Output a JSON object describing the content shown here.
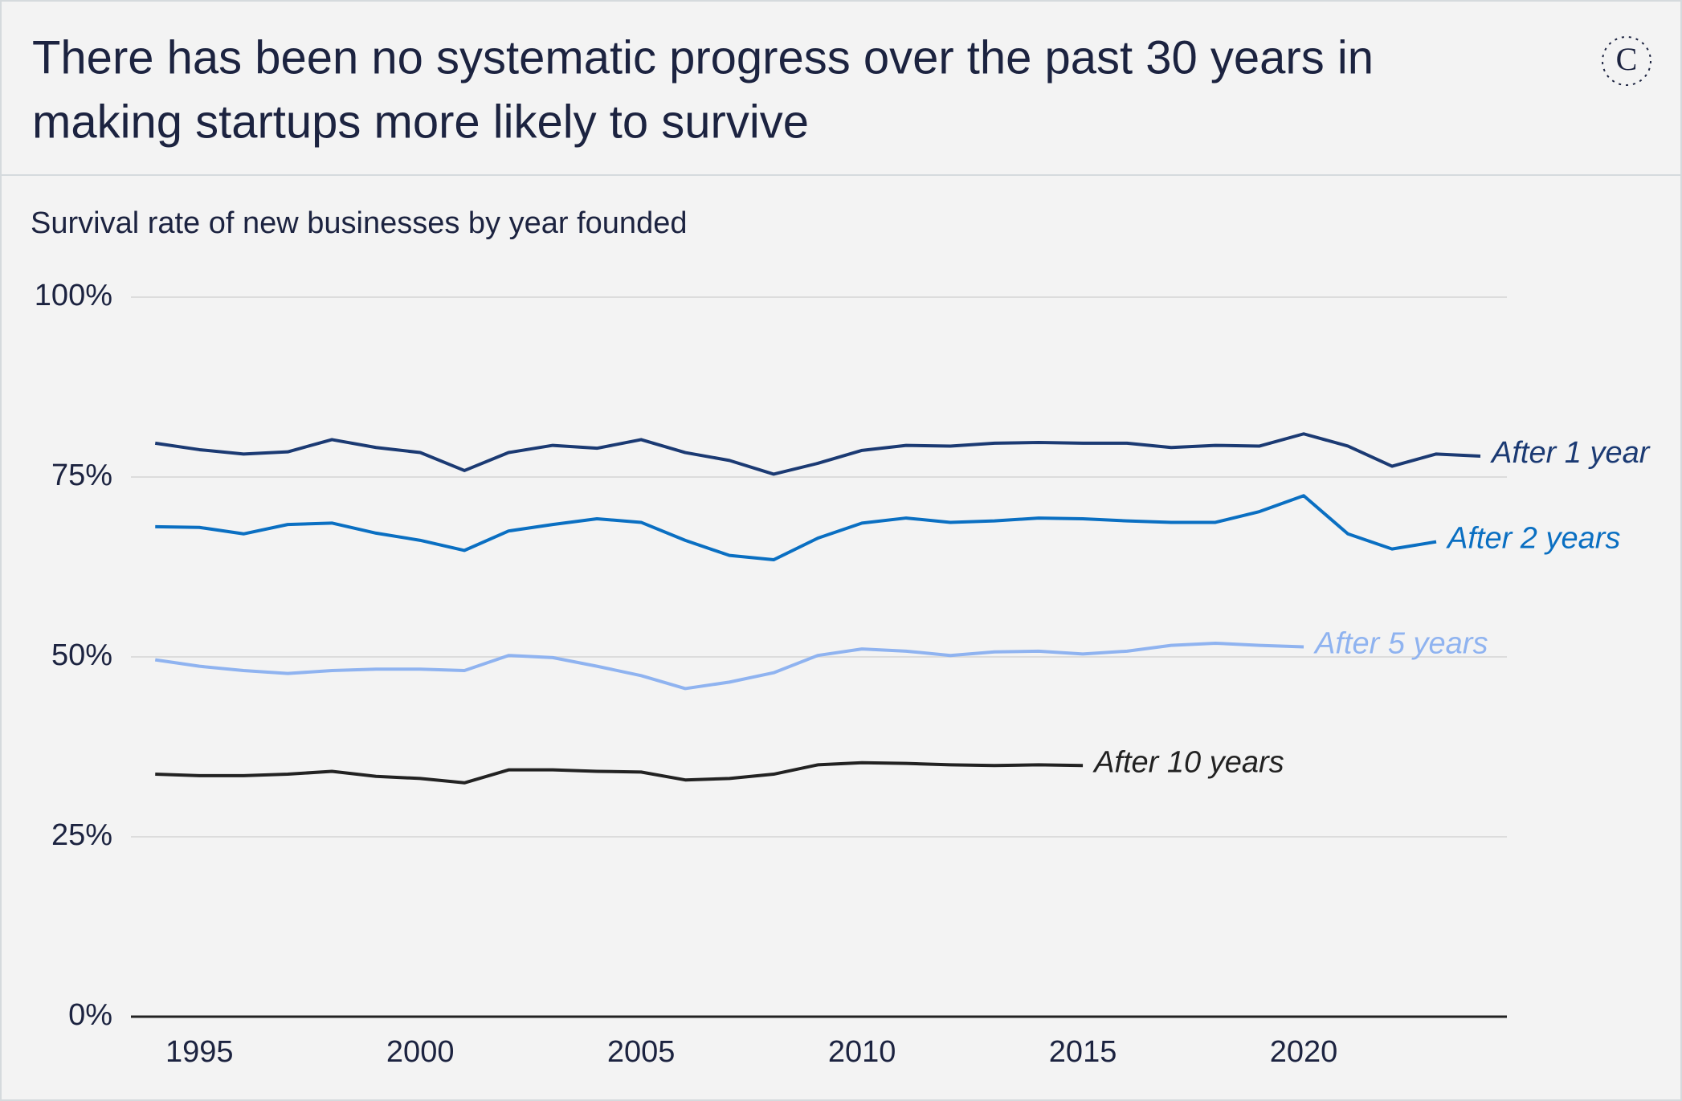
{
  "logo": "C",
  "chart_data": {
    "type": "line",
    "title_lines": [
      "There has been no systematic progress over the past 30 years in",
      "making startups more likely to survive"
    ],
    "subtitle": "Survival rate of new businesses by year founded",
    "x": [
      1994,
      1995,
      1996,
      1997,
      1998,
      1999,
      2000,
      2001,
      2002,
      2003,
      2004,
      2005,
      2006,
      2007,
      2008,
      2009,
      2010,
      2011,
      2012,
      2013,
      2014,
      2015,
      2016,
      2017,
      2018,
      2019,
      2020,
      2021,
      2022,
      2023,
      2024
    ],
    "xlim": [
      1993.45,
      2024.6
    ],
    "xticks": [
      1995,
      2000,
      2005,
      2010,
      2015,
      2020
    ],
    "ylim": [
      0,
      100
    ],
    "yticks": [
      {
        "value": 0,
        "label": "0%"
      },
      {
        "value": 25,
        "label": "25%"
      },
      {
        "value": 50,
        "label": "50%"
      },
      {
        "value": 75,
        "label": "75%"
      },
      {
        "value": 100,
        "label": "100%"
      }
    ],
    "grid": true,
    "series": [
      {
        "name": "After 1 year",
        "color": "#1b3a73",
        "values": [
          79.7,
          78.8,
          78.2,
          78.5,
          80.2,
          79.1,
          78.4,
          75.9,
          78.4,
          79.4,
          79.0,
          80.2,
          78.4,
          77.3,
          75.4,
          76.9,
          78.7,
          79.4,
          79.3,
          79.7,
          79.8,
          79.7,
          79.7,
          79.1,
          79.4,
          79.3,
          81.0,
          79.3,
          76.5,
          78.2,
          77.9
        ]
      },
      {
        "name": "After 2 years",
        "color": "#0a6fc2",
        "values": [
          68.1,
          68.0,
          67.1,
          68.4,
          68.6,
          67.2,
          66.2,
          64.8,
          67.5,
          68.4,
          69.2,
          68.7,
          66.2,
          64.1,
          63.5,
          66.5,
          68.6,
          69.3,
          68.7,
          68.9,
          69.3,
          69.2,
          68.9,
          68.7,
          68.7,
          70.2,
          72.4,
          67.1,
          65.0,
          66.0,
          null
        ]
      },
      {
        "name": "After 5 years",
        "color": "#8fb3f0",
        "values": [
          49.6,
          48.7,
          48.1,
          47.7,
          48.1,
          48.3,
          48.3,
          48.1,
          50.2,
          49.9,
          48.7,
          47.4,
          45.6,
          46.5,
          47.8,
          50.2,
          51.1,
          50.8,
          50.2,
          50.7,
          50.8,
          50.4,
          50.8,
          51.6,
          51.9,
          51.6,
          51.4,
          null,
          null,
          null,
          null
        ]
      },
      {
        "name": "After 10 years",
        "color": "#222222",
        "values": [
          33.7,
          33.5,
          33.5,
          33.7,
          34.1,
          33.4,
          33.1,
          32.5,
          34.3,
          34.3,
          34.1,
          34.0,
          32.9,
          33.1,
          33.7,
          35.0,
          35.3,
          35.2,
          35.0,
          34.9,
          35.0,
          34.9,
          null,
          null,
          null,
          null,
          null,
          null,
          null,
          null,
          null
        ]
      }
    ]
  }
}
